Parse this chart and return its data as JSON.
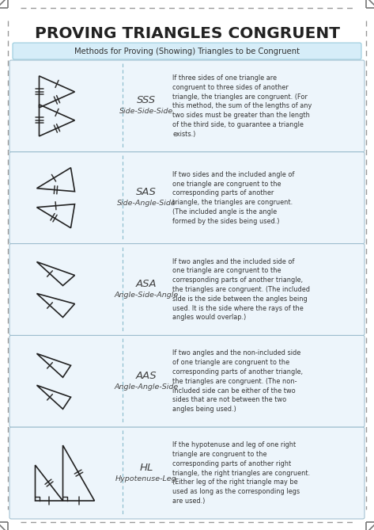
{
  "title": "PROVING TRIANGLES CONGRUENT",
  "subtitle": "Methods for Proving (Showing) Triangles to be Congruent",
  "bg_color": "#ffffff",
  "light_blue": "#d6edf8",
  "row_bg": "#edf5fb",
  "rows": [
    {
      "acronym": "SSS",
      "full": "Side-Side-Side",
      "description": "If three sides of one triangle are\ncongruent to three sides of another\ntriangle, the triangles are congruent. (For\nthis method, the sum of the lengths of any\ntwo sides must be greater than the length\nof the third side, to guarantee a triangle\nexists.)",
      "triangle_type": "SSS"
    },
    {
      "acronym": "SAS",
      "full": "Side-Angle-Side",
      "description": "If two sides and the included angle of\none triangle are congruent to the\ncorresponding parts of another\ntriangle, the triangles are congruent.\n(The included angle is the angle\nformed by the sides being used.)",
      "triangle_type": "SAS"
    },
    {
      "acronym": "ASA",
      "full": "Angle-Side-Angle",
      "description": "If two angles and the included side of\none triangle are congruent to the\ncorresponding parts of another triangle,\nthe triangles are congruent. (The included\nside is the side between the angles being\nused. It is the side where the rays of the\nangles would overlap.)",
      "triangle_type": "ASA"
    },
    {
      "acronym": "AAS",
      "full": "Angle-Angle-Side",
      "description": "If two angles and the non-included side\nof one triangle are congruent to the\ncorresponding parts of another triangle,\nthe triangles are congruent. (The non-\nincluded side can be either of the two\nsides that are not between the two\nangles being used.)",
      "triangle_type": "AAS"
    },
    {
      "acronym": "HL",
      "full": "Hypotenuse-Leg",
      "description": "If the hypotenuse and leg of one right\ntriangle are congruent to the\ncorresponding parts of another right\ntriangle, the right triangles are congruent.\n(Either leg of the right triangle may be\nused as long as the corresponding legs\nare used.)",
      "triangle_type": "HL"
    }
  ]
}
